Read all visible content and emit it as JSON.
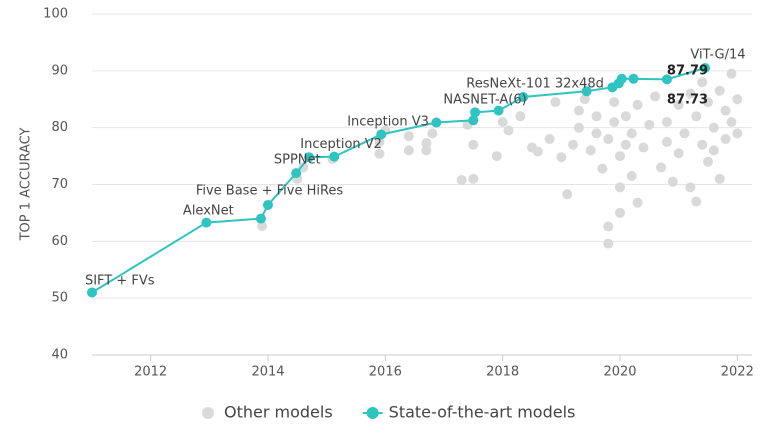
{
  "chart_data": {
    "type": "scatter",
    "y_label": "TOP 1 ACCURACY",
    "xlim": [
      2011,
      2022.25
    ],
    "xticks": [
      2012,
      2014,
      2016,
      2018,
      2020,
      2022
    ],
    "ylim": [
      40,
      100
    ],
    "yticks": [
      40,
      50,
      60,
      70,
      80,
      90,
      100
    ],
    "grid": true,
    "legend": "bottom",
    "series": [
      {
        "name": "Other models",
        "color": "#d9d9d9",
        "line": false,
        "x": [
          2013.9,
          2014.5,
          2014.6,
          2015.1,
          2015.9,
          2015.9,
          2016.0,
          2016.4,
          2016.4,
          2016.7,
          2016.7,
          2016.8,
          2017.3,
          2017.5,
          2017.5,
          2017.4,
          2017.9,
          2018.0,
          2018.1,
          2018.3,
          2018.5,
          2018.6,
          2018.8,
          2018.9,
          2019.0,
          2019.1,
          2019.2,
          2019.3,
          2019.3,
          2019.4,
          2019.5,
          2019.6,
          2019.6,
          2019.7,
          2019.8,
          2019.8,
          2019.8,
          2019.9,
          2019.9,
          2020.0,
          2020.0,
          2020.0,
          2020.1,
          2020.1,
          2020.2,
          2020.2,
          2020.3,
          2020.3,
          2020.4,
          2020.5,
          2020.6,
          2020.7,
          2020.8,
          2020.8,
          2020.9,
          2021.0,
          2021.0,
          2021.1,
          2021.2,
          2021.2,
          2021.3,
          2021.3,
          2021.4,
          2021.4,
          2021.5,
          2021.5,
          2021.6,
          2021.7,
          2021.7,
          2021.8,
          2021.8,
          2021.9,
          2021.9,
          2022.0,
          2022.0,
          2021.6
        ],
        "values": [
          62.7,
          71,
          73,
          74.5,
          75.4,
          77.5,
          79.5,
          78.5,
          76,
          76,
          77.3,
          79,
          70.8,
          71,
          77,
          80.5,
          75,
          81,
          79.5,
          82,
          76.5,
          75.8,
          78,
          84.5,
          74.8,
          68.3,
          77,
          80,
          83,
          85,
          76,
          79,
          82,
          72.8,
          59.6,
          62.6,
          78,
          81,
          84.5,
          65,
          69.5,
          75,
          77,
          82,
          71.5,
          79,
          66.8,
          84,
          76.5,
          80.5,
          85.5,
          73,
          77.5,
          81,
          70.5,
          84,
          75.5,
          79,
          86,
          69.5,
          67,
          82,
          77,
          88,
          74,
          84.5,
          80,
          71,
          86.5,
          78,
          83,
          89.5,
          81,
          85,
          79,
          76
        ]
      },
      {
        "name": "State-of-the-art models",
        "color": "#2ec4c0",
        "line": true,
        "x": [
          2011.0,
          2012.95,
          2013.88,
          2014.0,
          2014.48,
          2014.7,
          2015.13,
          2015.93,
          2016.87,
          2017.5,
          2017.53,
          2017.93,
          2018.35,
          2019.43,
          2019.87,
          2019.98,
          2020.03,
          2020.23,
          2020.8,
          2021.45
        ],
        "values": [
          51,
          63.3,
          64.0,
          66.4,
          72.0,
          74.8,
          74.9,
          78.8,
          80.9,
          81.3,
          82.7,
          83.0,
          85.4,
          86.4,
          87.1,
          87.8,
          88.6,
          88.6,
          88.5,
          90.5
        ]
      }
    ],
    "annotations": [
      {
        "text": "SIFT + FVs",
        "x": 2010.88,
        "y": 53.0
      },
      {
        "text": "AlexNet",
        "x": 2012.55,
        "y": 65.3
      },
      {
        "text": "Five Base + Five HiRes",
        "x": 2012.77,
        "y": 68.9
      },
      {
        "text": "SPPNet",
        "x": 2014.1,
        "y": 74.3
      },
      {
        "text": "Inception V2",
        "x": 2014.55,
        "y": 77.0
      },
      {
        "text": "Inception V3",
        "x": 2015.35,
        "y": 81.0
      },
      {
        "text": "NASNET-A(6)",
        "x": 2016.99,
        "y": 84.9
      },
      {
        "text": "ResNeXt-101 32x48d",
        "x": 2017.38,
        "y": 87.7
      },
      {
        "text": "ViT-G/14",
        "x": 2021.2,
        "y": 92.8
      },
      {
        "text": "87.79",
        "x": 2020.8,
        "y": 90.0,
        "bold": true
      },
      {
        "text": "87.73",
        "x": 2020.8,
        "y": 84.9,
        "bold": true
      }
    ]
  }
}
